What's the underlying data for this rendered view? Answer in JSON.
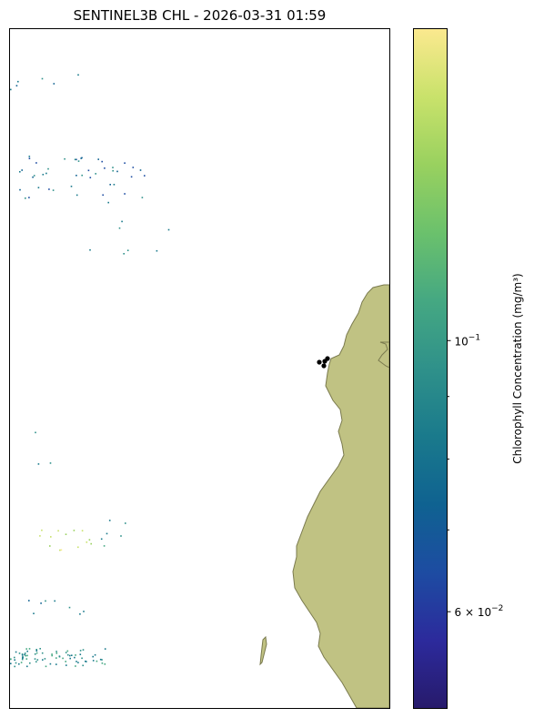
{
  "chart_data": {
    "type": "heatmap",
    "title": "SENTINEL3B CHL - 2026-03-31 01:59",
    "colorbar": {
      "label": "Chlorophyll Concentration (mg/m³)",
      "scale": "log",
      "range": [
        0.05,
        0.18
      ],
      "colormap": [
        "#271a6b",
        "#2c2a9c",
        "#1d4ca2",
        "#0f6291",
        "#1a7a8c",
        "#2f918a",
        "#45a882",
        "#6bc16c",
        "#99d15f",
        "#c9e26b",
        "#fbe98f"
      ],
      "ticks": [
        {
          "value": 0.1,
          "mantissa": "10",
          "exponent": "−1"
        },
        {
          "value": 0.06,
          "mantissa": "6 × 10",
          "exponent": "−2"
        }
      ],
      "minor_ticks": [
        0.09,
        0.08,
        0.07
      ]
    },
    "map": {
      "land_color": "#c0c283",
      "coast_color": "#7a7a4e",
      "marker_color": "#000000",
      "markers": [
        "station-1",
        "station-2",
        "station-3",
        "station-4"
      ]
    }
  }
}
